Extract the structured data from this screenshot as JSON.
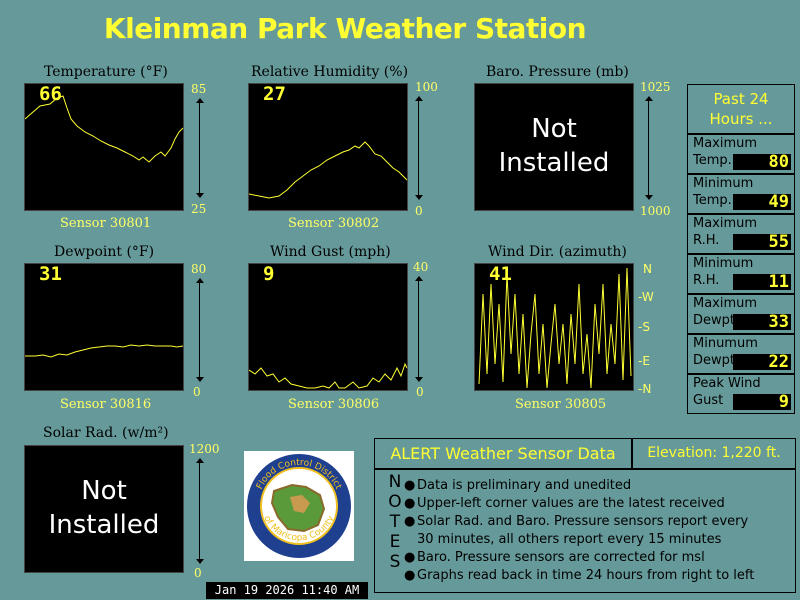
{
  "title": "Kleinman Park  Weather Station",
  "panels": {
    "temp": {
      "title": "Temperature (°F)",
      "latest": "66",
      "sensor": "Sensor 30801",
      "top": "85",
      "bottom": "25"
    },
    "rh": {
      "title": "Relative Humidity (%)",
      "latest": "27",
      "sensor": "Sensor 30802",
      "top": "100",
      "bottom": "0"
    },
    "baro": {
      "title": "Baro. Pressure (mb)",
      "status_line1": "Not",
      "status_line2": "Installed",
      "top": "1025",
      "bottom": "1000"
    },
    "dew": {
      "title": "Dewpoint (°F)",
      "latest": "31",
      "sensor": "Sensor 30816",
      "top": "80",
      "bottom": "0"
    },
    "gust": {
      "title": "Wind Gust (mph)",
      "latest": "9",
      "sensor": "Sensor 30806",
      "top": "40",
      "bottom": "0"
    },
    "wdir": {
      "title": "Wind Dir. (azimuth)",
      "latest": "41",
      "sensor": "Sensor 30805",
      "dirs": [
        "N",
        "W",
        "S",
        "E",
        "N"
      ]
    },
    "solar": {
      "title": "Solar Rad. (w/m²)",
      "status_line1": "Not",
      "status_line2": "Installed",
      "top": "1200",
      "bottom": "0"
    }
  },
  "stats": {
    "header_line1": "Past 24",
    "header_line2": "Hours ...",
    "rows": [
      {
        "l1": "Maximum",
        "l2": "Temp.",
        "value": "80"
      },
      {
        "l1": "Minimum",
        "l2": "Temp.",
        "value": "49"
      },
      {
        "l1": "Maximum",
        "l2": "R.H.",
        "value": "55"
      },
      {
        "l1": "Minimum",
        "l2": "R.H.",
        "value": "11"
      },
      {
        "l1": "Maximum",
        "l2": "Dewpt.",
        "value": "33"
      },
      {
        "l1": "Minumum",
        "l2": "Dewpt.",
        "value": "22"
      },
      {
        "l1": "Peak Wind",
        "l2": "Gust",
        "value": "9"
      }
    ]
  },
  "alert": {
    "title": "ALERT Weather Sensor Data",
    "elevation": "Elevation: 1,220 ft.",
    "notes_letters": [
      "N",
      "O",
      "T",
      "E",
      "S"
    ],
    "notes": [
      "Data is preliminary and unedited",
      "Upper-left corner values are the latest received",
      "Solar Rad. and Baro. Pressure sensors report every",
      "30 minutes, all others report every 15 minutes",
      "Baro. Pressure sensors are corrected for msl",
      "Graphs read back in time 24 hours from right to left"
    ],
    "bullet": "●"
  },
  "logo": {
    "text_top": "Flood Control District",
    "text_bottom": "of Maricopa County"
  },
  "timestamp": "Jan 19 2026 11:40 AM",
  "colors": {
    "background": "#669999",
    "accent": "#ffff33",
    "panel": "#000000"
  }
}
